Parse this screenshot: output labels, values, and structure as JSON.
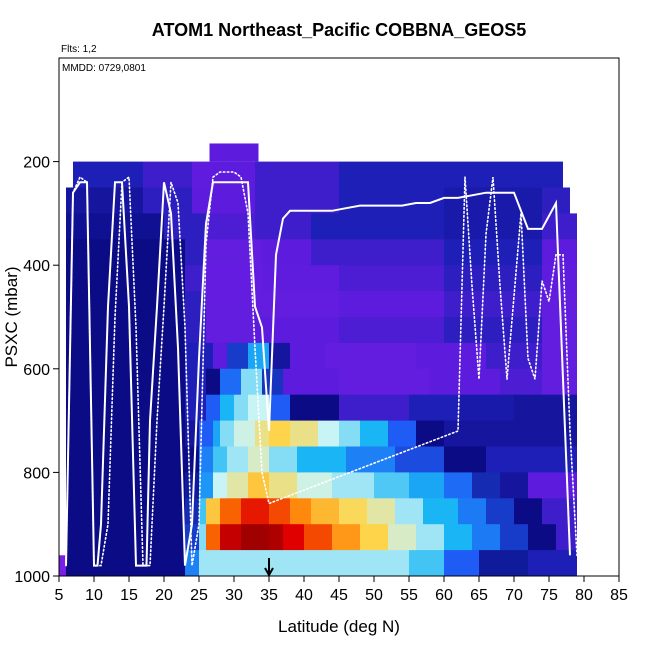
{
  "chart_data": {
    "type": "heatmap",
    "title": "ATOM1 Northeast_Pacific COBBNA_GEOS5",
    "annotations": {
      "flights": "Flts: 1,2",
      "dates": "MMDD: 0729,0801"
    },
    "xlabel": "Latitude (deg N)",
    "ylabel": "PSXC (mbar)",
    "xlim": [
      5,
      85
    ],
    "ylim": [
      1000,
      0
    ],
    "y_reversed": true,
    "x_ticks": [
      5,
      10,
      15,
      20,
      25,
      30,
      35,
      40,
      45,
      50,
      55,
      60,
      65,
      70,
      75,
      80,
      85
    ],
    "y_ticks": [
      200,
      400,
      600,
      800,
      1000
    ],
    "grid": false,
    "background_color": "#7a1fe8",
    "heatmap_rows": [
      {
        "p": 225,
        "x0": 7,
        "x1": 77,
        "segments": [
          [
            7,
            17,
            0.16
          ],
          [
            17,
            24,
            0.14
          ],
          [
            24,
            27,
            0.11
          ],
          [
            27,
            33,
            0.12
          ],
          [
            33,
            45,
            0.14
          ],
          [
            45,
            77,
            0.16
          ]
        ]
      },
      {
        "p": 275,
        "x0": 6,
        "x1": 78,
        "segments": [
          [
            6,
            17,
            0.18
          ],
          [
            17,
            24,
            0.15
          ],
          [
            24,
            27,
            0.12
          ],
          [
            27,
            33,
            0.12
          ],
          [
            33,
            45,
            0.14
          ],
          [
            45,
            60,
            0.16
          ],
          [
            60,
            74,
            0.17
          ],
          [
            74,
            78,
            0.15
          ]
        ]
      },
      {
        "p": 325,
        "x0": 6,
        "x1": 79,
        "segments": [
          [
            6,
            20,
            0.19
          ],
          [
            20,
            26,
            0.15
          ],
          [
            26,
            33,
            0.13
          ],
          [
            33,
            41,
            0.14
          ],
          [
            41,
            60,
            0.16
          ],
          [
            60,
            74,
            0.17
          ],
          [
            74,
            79,
            0.14
          ]
        ]
      },
      {
        "p": 375,
        "x0": 6,
        "x1": 79,
        "segments": [
          [
            6,
            23,
            0.2
          ],
          [
            23,
            26,
            0.15
          ],
          [
            26,
            34,
            0.1
          ],
          [
            34,
            41,
            0.12
          ],
          [
            41,
            60,
            0.14
          ],
          [
            60,
            74,
            0.16
          ],
          [
            74,
            79,
            0.12
          ]
        ]
      },
      {
        "p": 425,
        "x0": 6,
        "x1": 79,
        "segments": [
          [
            6,
            23,
            0.2
          ],
          [
            23,
            26,
            0.14
          ],
          [
            26,
            34,
            0.09
          ],
          [
            34,
            45,
            0.11
          ],
          [
            45,
            60,
            0.13
          ],
          [
            60,
            74,
            0.15
          ],
          [
            74,
            79,
            0.11
          ]
        ]
      },
      {
        "p": 475,
        "x0": 6,
        "x1": 79,
        "segments": [
          [
            6,
            23,
            0.2
          ],
          [
            23,
            26,
            0.15
          ],
          [
            26,
            34,
            0.1
          ],
          [
            34,
            45,
            0.1
          ],
          [
            45,
            60,
            0.12
          ],
          [
            60,
            74,
            0.14
          ],
          [
            74,
            79,
            0.1
          ]
        ]
      },
      {
        "p": 525,
        "x0": 6,
        "x1": 79,
        "segments": [
          [
            6,
            23,
            0.2
          ],
          [
            23,
            26,
            0.15
          ],
          [
            26,
            33,
            0.1
          ],
          [
            33,
            45,
            0.12
          ],
          [
            45,
            60,
            0.13
          ],
          [
            60,
            74,
            0.15
          ],
          [
            74,
            79,
            0.1
          ]
        ]
      },
      {
        "p": 575,
        "x0": 6,
        "x1": 79,
        "segments": [
          [
            6,
            23,
            0.2
          ],
          [
            23,
            27,
            0.16
          ],
          [
            27,
            29,
            0.12
          ],
          [
            29,
            32,
            0.26
          ],
          [
            32,
            35,
            0.4
          ],
          [
            35,
            38,
            0.18
          ],
          [
            38,
            43,
            0.12
          ],
          [
            43,
            56,
            0.1
          ],
          [
            56,
            66,
            0.12
          ],
          [
            66,
            74,
            0.14
          ],
          [
            74,
            79,
            0.1
          ]
        ]
      },
      {
        "p": 625,
        "x0": 6,
        "x1": 79,
        "segments": [
          [
            6,
            23,
            0.2
          ],
          [
            23,
            26,
            0.16
          ],
          [
            26,
            28,
            0.2
          ],
          [
            28,
            31,
            0.32
          ],
          [
            31,
            34,
            0.5
          ],
          [
            34,
            37,
            0.25
          ],
          [
            37,
            45,
            0.12
          ],
          [
            45,
            58,
            0.1
          ],
          [
            58,
            68,
            0.12
          ],
          [
            68,
            74,
            0.13
          ],
          [
            74,
            79,
            0.1
          ]
        ]
      },
      {
        "p": 675,
        "x0": 6,
        "x1": 79,
        "segments": [
          [
            6,
            23,
            0.2
          ],
          [
            23,
            26,
            0.16
          ],
          [
            26,
            28,
            0.3
          ],
          [
            28,
            30,
            0.42
          ],
          [
            30,
            32,
            0.5
          ],
          [
            32,
            35,
            0.55
          ],
          [
            35,
            38,
            0.3
          ],
          [
            38,
            45,
            0.2
          ],
          [
            45,
            55,
            0.14
          ],
          [
            55,
            62,
            0.16
          ],
          [
            62,
            70,
            0.17
          ],
          [
            70,
            79,
            0.18
          ]
        ]
      },
      {
        "p": 725,
        "x0": 6,
        "x1": 79,
        "segments": [
          [
            6,
            23,
            0.2
          ],
          [
            23,
            25,
            0.18
          ],
          [
            25,
            27,
            0.3
          ],
          [
            27,
            28,
            0.4
          ],
          [
            28,
            30,
            0.5
          ],
          [
            30,
            33,
            0.56
          ],
          [
            33,
            35,
            0.62
          ],
          [
            35,
            38,
            0.66
          ],
          [
            38,
            42,
            0.62
          ],
          [
            42,
            45,
            0.55
          ],
          [
            45,
            48,
            0.5
          ],
          [
            48,
            52,
            0.42
          ],
          [
            52,
            56,
            0.3
          ],
          [
            56,
            60,
            0.2
          ],
          [
            60,
            79,
            0.18
          ]
        ]
      },
      {
        "p": 775,
        "x0": 6,
        "x1": 79,
        "segments": [
          [
            6,
            23,
            0.2
          ],
          [
            23,
            25,
            0.2
          ],
          [
            25,
            27,
            0.35
          ],
          [
            27,
            29,
            0.45
          ],
          [
            29,
            32,
            0.52
          ],
          [
            32,
            35,
            0.58
          ],
          [
            35,
            39,
            0.5
          ],
          [
            39,
            46,
            0.42
          ],
          [
            46,
            53,
            0.35
          ],
          [
            53,
            60,
            0.28
          ],
          [
            60,
            66,
            0.2
          ],
          [
            66,
            79,
            0.16
          ]
        ]
      },
      {
        "p": 825,
        "x0": 6,
        "x1": 79,
        "segments": [
          [
            6,
            23,
            0.2
          ],
          [
            23,
            25,
            0.22
          ],
          [
            25,
            27,
            0.38
          ],
          [
            27,
            29,
            0.55
          ],
          [
            29,
            32,
            0.6
          ],
          [
            32,
            35,
            0.68
          ],
          [
            35,
            39,
            0.62
          ],
          [
            39,
            44,
            0.56
          ],
          [
            44,
            50,
            0.52
          ],
          [
            50,
            55,
            0.46
          ],
          [
            55,
            60,
            0.4
          ],
          [
            60,
            64,
            0.32
          ],
          [
            64,
            68,
            0.24
          ],
          [
            68,
            72,
            0.18
          ],
          [
            72,
            79,
            0.12
          ]
        ]
      },
      {
        "p": 875,
        "x0": 6,
        "x1": 79,
        "segments": [
          [
            6,
            23,
            0.2
          ],
          [
            23,
            25,
            0.24
          ],
          [
            25,
            26,
            0.45
          ],
          [
            26,
            28,
            0.68
          ],
          [
            28,
            31,
            0.8
          ],
          [
            31,
            35,
            0.86
          ],
          [
            35,
            38,
            0.82
          ],
          [
            38,
            41,
            0.76
          ],
          [
            41,
            45,
            0.7
          ],
          [
            45,
            49,
            0.65
          ],
          [
            49,
            53,
            0.6
          ],
          [
            53,
            57,
            0.52
          ],
          [
            57,
            62,
            0.42
          ],
          [
            62,
            66,
            0.34
          ],
          [
            66,
            70,
            0.26
          ],
          [
            70,
            74,
            0.2
          ],
          [
            74,
            79,
            0.14
          ]
        ]
      },
      {
        "p": 925,
        "x0": 6,
        "x1": 79,
        "segments": [
          [
            6,
            23,
            0.2
          ],
          [
            23,
            25,
            0.26
          ],
          [
            25,
            26,
            0.5
          ],
          [
            26,
            28,
            0.8
          ],
          [
            28,
            31,
            0.92
          ],
          [
            31,
            35,
            0.97
          ],
          [
            35,
            37,
            0.95
          ],
          [
            37,
            40,
            0.88
          ],
          [
            40,
            44,
            0.82
          ],
          [
            44,
            48,
            0.74
          ],
          [
            48,
            52,
            0.66
          ],
          [
            52,
            56,
            0.58
          ],
          [
            56,
            60,
            0.52
          ],
          [
            60,
            64,
            0.42
          ],
          [
            64,
            68,
            0.34
          ],
          [
            68,
            72,
            0.26
          ],
          [
            72,
            76,
            0.2
          ],
          [
            76,
            79,
            0.14
          ]
        ]
      },
      {
        "p": 975,
        "x0": 6,
        "x1": 79,
        "segments": [
          [
            6,
            23,
            0.2
          ],
          [
            23,
            25,
            0.35
          ],
          [
            25,
            55,
            0.52
          ],
          [
            55,
            60,
            0.45
          ],
          [
            60,
            65,
            0.3
          ],
          [
            65,
            72,
            0.22
          ],
          [
            72,
            79,
            0.16
          ]
        ]
      }
    ],
    "colors": {
      "purple": "#7a1fe8",
      "violet": "#5d1cdd",
      "blue_dark": "#1d1fb6",
      "navy": "#0c0b86",
      "blue": "#1f5cf5",
      "light_blue": "#1ab5f5",
      "cyan_light": "#c8f4f5",
      "yellow": "#fed54a",
      "orange": "#ff7a00",
      "red": "#e00000",
      "dark_red": "#8c0000",
      "white": "#ffffff",
      "black": "#000000"
    },
    "series": [
      {
        "style": "solid",
        "x": [
          6,
          7,
          8,
          9,
          10,
          10.5,
          11,
          12,
          13,
          14,
          15,
          16,
          17,
          17.5,
          18,
          19,
          20,
          21,
          22,
          23,
          24,
          25,
          26,
          27,
          28,
          29,
          30,
          31,
          32,
          33,
          34,
          35,
          36,
          37,
          38,
          40,
          42,
          44,
          46,
          48,
          50,
          52,
          54,
          56,
          58,
          60,
          62,
          64,
          66,
          68,
          70,
          72,
          74,
          76,
          78
        ],
        "y": [
          980,
          260,
          240,
          240,
          980,
          980,
          900,
          480,
          240,
          240,
          480,
          980,
          980,
          980,
          700,
          480,
          240,
          300,
          560,
          980,
          900,
          580,
          320,
          240,
          240,
          240,
          240,
          240,
          240,
          480,
          520,
          720,
          380,
          310,
          295,
          295,
          295,
          295,
          290,
          285,
          285,
          285,
          285,
          280,
          280,
          270,
          270,
          265,
          260,
          260,
          260,
          330,
          330,
          280,
          960
        ]
      },
      {
        "style": "dotted",
        "x": [
          6,
          7,
          8,
          9,
          10,
          11,
          12,
          13,
          14,
          15,
          16,
          17,
          18,
          19,
          20,
          21,
          22,
          23,
          24,
          25,
          26,
          27,
          28,
          29,
          30,
          31,
          32,
          33,
          34,
          35,
          62,
          63,
          64,
          65,
          66,
          67,
          68,
          69,
          70,
          71,
          72,
          73,
          74,
          75,
          76,
          77,
          78,
          79
        ],
        "y": [
          980,
          260,
          230,
          240,
          980,
          980,
          900,
          500,
          240,
          230,
          520,
          980,
          980,
          700,
          480,
          240,
          280,
          520,
          980,
          900,
          360,
          230,
          220,
          220,
          220,
          230,
          300,
          560,
          800,
          860,
          720,
          230,
          440,
          620,
          340,
          230,
          440,
          620,
          460,
          300,
          580,
          620,
          430,
          470,
          380,
          380,
          720,
          960
        ]
      }
    ],
    "marker": {
      "x": 35,
      "label": "arrow"
    }
  }
}
